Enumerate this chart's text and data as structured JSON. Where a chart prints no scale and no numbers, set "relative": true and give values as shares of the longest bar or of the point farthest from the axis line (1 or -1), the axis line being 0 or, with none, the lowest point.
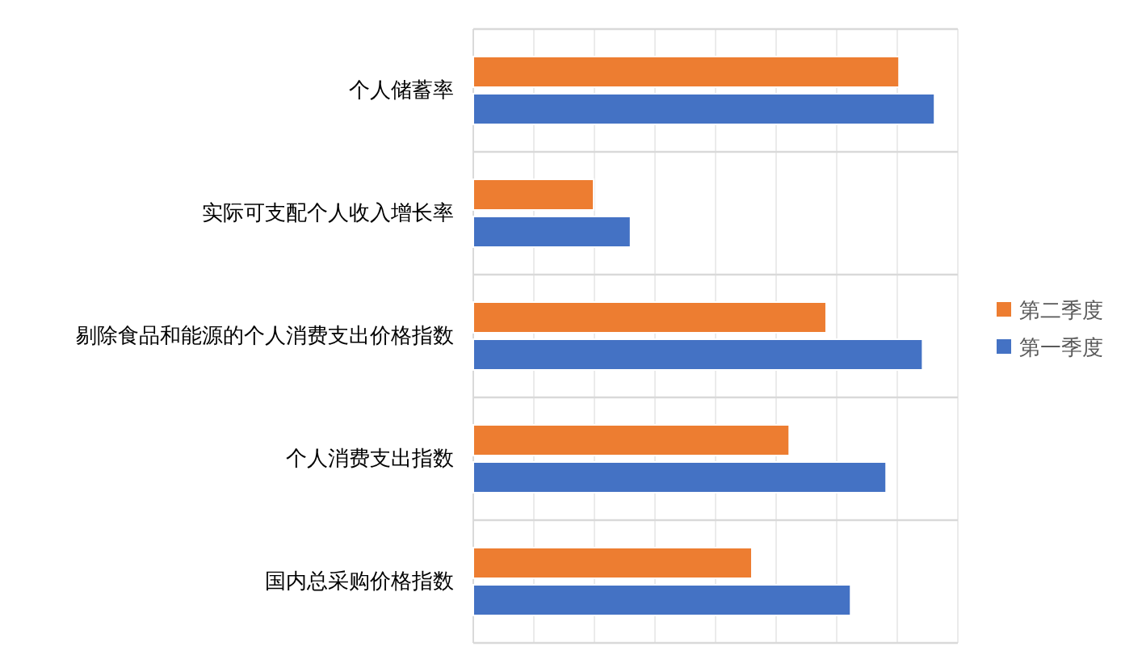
{
  "chart_data": {
    "type": "bar",
    "orientation": "horizontal",
    "relative": true,
    "grid": true,
    "legend": "right",
    "categories": [
      "个人储蓄率",
      "实际可支配个人收入增长率",
      "剔除食品和能源的个人消费支出价格指数",
      "个人消费支出指数",
      "国内总采购价格指数"
    ],
    "series": [
      {
        "name": "第二季度",
        "color": "#ed7d31",
        "values": [
          0.923,
          0.261,
          0.765,
          0.685,
          0.604
        ]
      },
      {
        "name": "第一季度",
        "color": "#4472c4",
        "values": [
          1,
          0.341,
          0.974,
          0.895,
          0.818
        ]
      }
    ]
  }
}
